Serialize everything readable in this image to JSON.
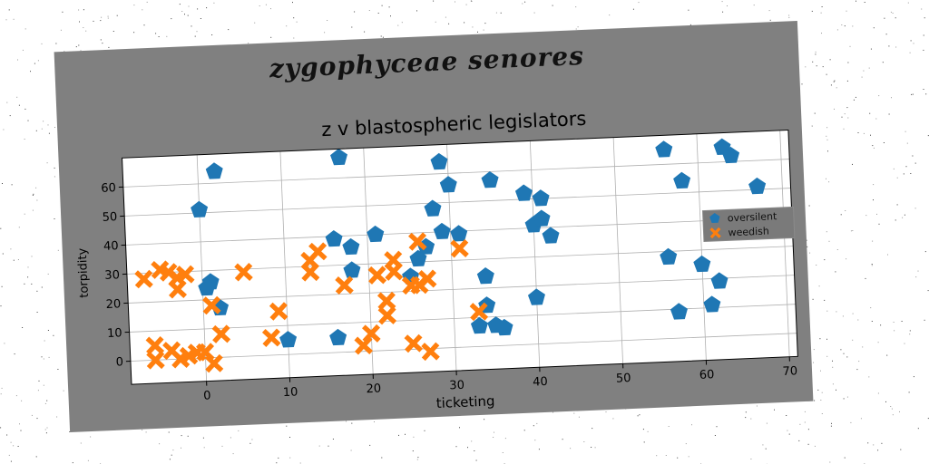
{
  "suptitle": "zygophyceae senores",
  "chart_data": {
    "type": "scatter",
    "title": "z v blastospheric legislators",
    "xlabel": "ticketing",
    "ylabel": "torpidity",
    "xlim": [
      -9,
      71
    ],
    "ylim": [
      -8,
      70
    ],
    "xticks": [
      0,
      10,
      20,
      30,
      40,
      50,
      60,
      70
    ],
    "yticks": [
      0,
      10,
      20,
      30,
      40,
      50,
      60
    ],
    "grid": true,
    "legend_position": "right",
    "series": [
      {
        "name": "oversilent",
        "color": "#1f77b4",
        "marker": "pentagon",
        "points": [
          [
            2,
            64
          ],
          [
            17,
            67
          ],
          [
            0,
            51
          ],
          [
            1,
            26
          ],
          [
            0.5,
            24
          ],
          [
            2,
            17
          ],
          [
            10,
            5
          ],
          [
            16,
            5
          ],
          [
            16,
            39
          ],
          [
            18,
            36
          ],
          [
            18,
            28
          ],
          [
            21,
            40
          ],
          [
            25,
            25
          ],
          [
            26,
            31
          ],
          [
            27,
            35
          ],
          [
            28,
            48
          ],
          [
            29,
            40
          ],
          [
            29,
            64
          ],
          [
            30,
            56
          ],
          [
            31,
            39
          ],
          [
            33,
            7
          ],
          [
            34,
            24
          ],
          [
            34,
            14
          ],
          [
            35,
            57
          ],
          [
            35,
            7
          ],
          [
            36,
            6
          ],
          [
            39,
            52
          ],
          [
            40,
            16
          ],
          [
            40,
            41
          ],
          [
            41,
            43
          ],
          [
            41,
            50
          ],
          [
            42,
            37
          ],
          [
            56,
            65
          ],
          [
            56,
            28
          ],
          [
            57,
            9
          ],
          [
            58,
            54
          ],
          [
            60,
            25
          ],
          [
            61,
            11
          ],
          [
            62,
            19
          ],
          [
            63,
            65
          ],
          [
            64,
            62
          ],
          [
            67,
            51
          ]
        ]
      },
      {
        "name": "weedish",
        "color": "#ff7f0e",
        "marker": "x",
        "points": [
          [
            -7,
            28
          ],
          [
            -6,
            5
          ],
          [
            -6,
            0
          ],
          [
            -5,
            31
          ],
          [
            -4,
            30
          ],
          [
            -4,
            3
          ],
          [
            -3,
            24
          ],
          [
            -3,
            28
          ],
          [
            -3,
            0
          ],
          [
            -2,
            29
          ],
          [
            -2,
            1
          ],
          [
            -1,
            2
          ],
          [
            0,
            2
          ],
          [
            1,
            -2
          ],
          [
            1,
            18
          ],
          [
            2,
            8
          ],
          [
            5,
            29
          ],
          [
            8,
            6
          ],
          [
            9,
            15
          ],
          [
            13,
            28
          ],
          [
            13,
            32
          ],
          [
            14,
            35
          ],
          [
            17,
            23
          ],
          [
            19,
            2
          ],
          [
            20,
            6
          ],
          [
            21,
            26
          ],
          [
            22,
            12
          ],
          [
            22,
            17
          ],
          [
            23,
            27
          ],
          [
            23,
            31
          ],
          [
            25,
            2
          ],
          [
            25,
            22
          ],
          [
            26,
            37
          ],
          [
            26,
            22
          ],
          [
            27,
            -1
          ],
          [
            27,
            24
          ],
          [
            31,
            34
          ],
          [
            33,
            12
          ]
        ]
      }
    ]
  }
}
